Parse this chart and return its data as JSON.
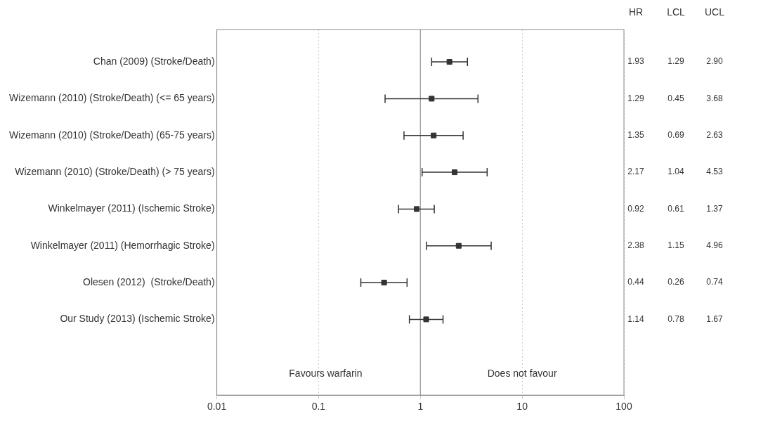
{
  "chart_data": {
    "type": "scatter",
    "orientation": "horizontal",
    "categories": [
      "Chan (2009) (Stroke/Death)",
      "Wizemann (2010) (Stroke/Death) (<= 65 years)",
      "Wizemann (2010) (Stroke/Death) (65-75 years)",
      "Wizemann (2010) (Stroke/Death) (> 75 years)",
      "Winkelmayer (2011) (Ischemic Stroke)",
      "Winkelmayer (2011) (Hemorrhagic Stroke)",
      "Olesen (2012)  (Stroke/Death)",
      "Our Study (2013) (Ischemic Stroke)"
    ],
    "values": [
      1.93,
      1.29,
      1.35,
      2.17,
      0.92,
      2.38,
      0.44,
      1.14
    ],
    "errors": [
      [
        1.29,
        2.9
      ],
      [
        0.45,
        3.68
      ],
      [
        0.69,
        2.63
      ],
      [
        1.04,
        4.53
      ],
      [
        0.61,
        1.37
      ],
      [
        1.15,
        4.96
      ],
      [
        0.26,
        0.74
      ],
      [
        0.78,
        1.67
      ]
    ],
    "color": "#333333",
    "marker": "square",
    "log": "x",
    "xlim": [
      0.01,
      100
    ],
    "xticks": [
      0.01,
      0.1,
      1,
      10,
      100
    ],
    "grid": "x",
    "ref_lines": [
      {
        "axis": "x",
        "value": 1,
        "color": "#999999",
        "line_style": "solid"
      }
    ],
    "data_labels": true,
    "annotations": [
      "HR",
      "LCL",
      "UCL",
      "Favours warfarin",
      "Does not favour",
      "1.29",
      "2.90",
      "0.45",
      "3.68",
      "0.69",
      "2.63",
      "1.04",
      "4.53",
      "0.61",
      "1.37",
      "1.15",
      "4.96",
      "0.26",
      "0.74",
      "0.78",
      "1.67"
    ]
  }
}
